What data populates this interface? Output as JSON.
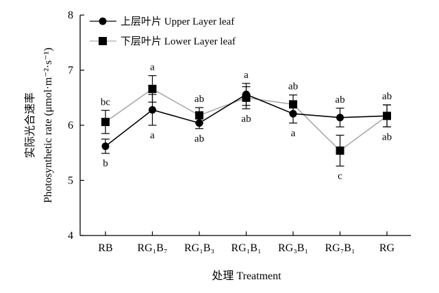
{
  "chart_data": {
    "type": "line",
    "title": "",
    "xlabel": "处理 Treatment",
    "ylabel_zh": "实际光合速率",
    "ylabel_en": "Photosynthetic rate (μmol·m⁻²·s⁻¹)",
    "ylim": [
      4,
      8
    ],
    "yticks": [
      4,
      5,
      6,
      7,
      8
    ],
    "grid": false,
    "legend_position": "top-left",
    "categories": [
      "RB",
      "RG₁B₇",
      "RG₁B₃",
      "RG₁B₁",
      "RG₃B₁",
      "RG₇B₁",
      "RG"
    ],
    "series": [
      {
        "name": "上层叶片 Upper Layer leaf",
        "marker": "circle",
        "color": "#000000",
        "values": [
          5.62,
          6.28,
          6.04,
          6.56,
          6.21,
          6.14,
          6.17
        ],
        "errors": [
          0.13,
          0.28,
          0.1,
          0.2,
          0.17,
          0.17,
          0.2
        ],
        "letters": [
          "b",
          "a",
          "ab",
          "a",
          "a",
          "ab",
          "ab"
        ]
      },
      {
        "name": "下层叶片 Lower Layer leaf",
        "marker": "square",
        "color": "#aaaaaa",
        "values": [
          6.06,
          6.66,
          6.18,
          6.5,
          6.38,
          5.54,
          6.17
        ],
        "errors": [
          0.21,
          0.24,
          0.14,
          0.2,
          0.17,
          0.28,
          0.2
        ],
        "letters": [
          "bc",
          "a",
          "ab",
          "ab",
          "ab",
          "c",
          "ab"
        ]
      }
    ]
  }
}
